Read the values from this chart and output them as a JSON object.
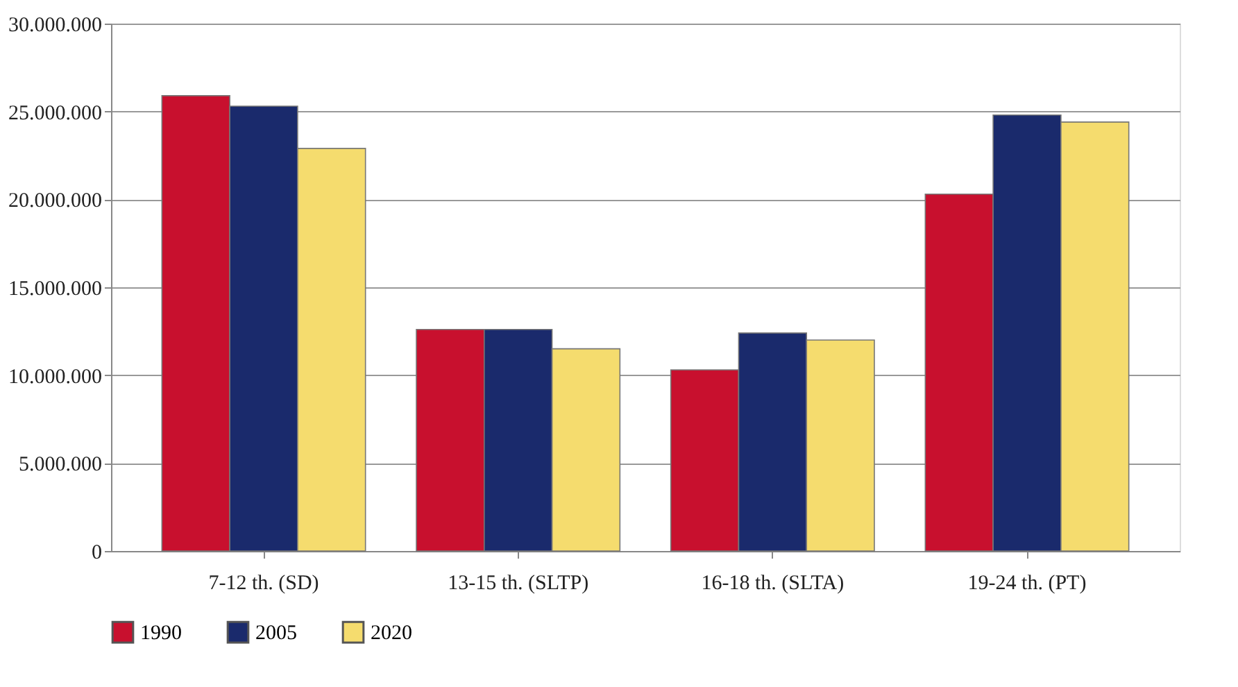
{
  "chart_data": {
    "type": "bar",
    "categories": [
      "7-12 th. (SD)",
      "13-15 th. (SLTP)",
      "16-18 th. (SLTA)",
      "19-24 th. (PT)"
    ],
    "series": [
      {
        "name": "1990",
        "color": "#c8102e",
        "values": [
          25900000,
          12600000,
          10300000,
          20300000
        ]
      },
      {
        "name": "2005",
        "color": "#1a2a6c",
        "values": [
          25300000,
          12600000,
          12400000,
          24800000
        ]
      },
      {
        "name": "2020",
        "color": "#f5dc6e",
        "values": [
          22900000,
          11500000,
          12000000,
          24400000
        ]
      }
    ],
    "ylim": [
      0,
      30000000
    ],
    "yticks": [
      {
        "value": 0,
        "label": "0"
      },
      {
        "value": 5000000,
        "label": "5.000.000"
      },
      {
        "value": 10000000,
        "label": "10.000.000"
      },
      {
        "value": 15000000,
        "label": "15.000.000"
      },
      {
        "value": 20000000,
        "label": "20.000.000"
      },
      {
        "value": 25000000,
        "label": "25.000.000"
      },
      {
        "value": 30000000,
        "label": "30.000.000"
      }
    ],
    "grid": "y",
    "legend": "bottom left"
  }
}
